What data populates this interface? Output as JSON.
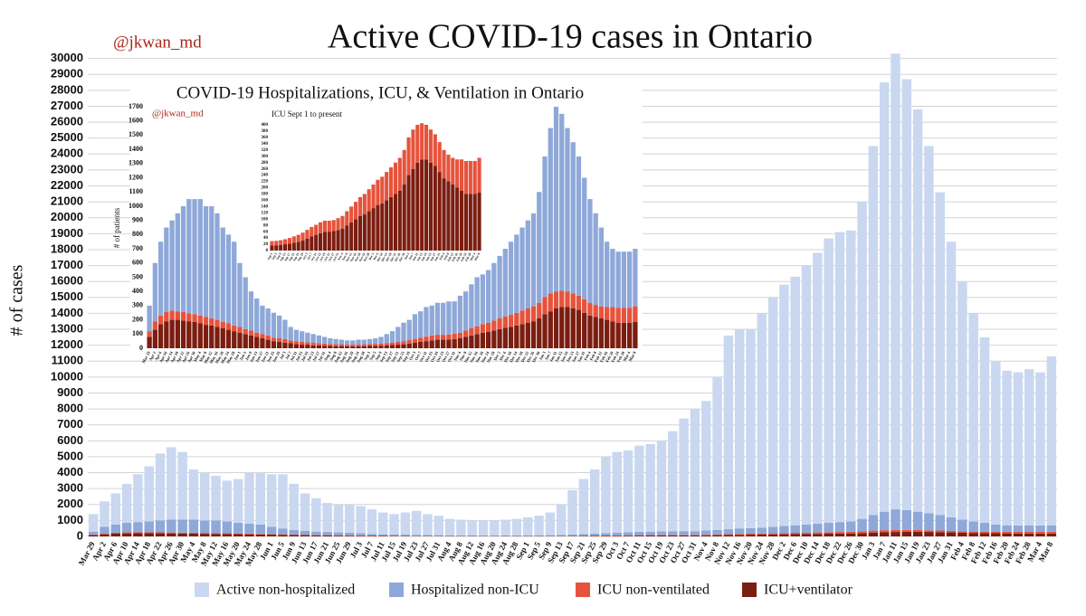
{
  "chart_data": [
    {
      "type": "stacked_bar",
      "title": "Active COVID-19 cases in Ontario",
      "annotation": "@jkwan_md",
      "ylabel": "# of cases",
      "categories": [
        "Mar 29",
        "Apr 2",
        "Apr 6",
        "Apr 10",
        "Apr 14",
        "Apr 18",
        "Apr 22",
        "Apr 26",
        "Apr 30",
        "May 4",
        "May 8",
        "May 12",
        "May 16",
        "May 20",
        "May 24",
        "May 28",
        "Jun 1",
        "Jun 5",
        "Jun 9",
        "Jun 13",
        "Jun 17",
        "Jun 21",
        "Jun 25",
        "Jun 29",
        "Jul 3",
        "Jul 7",
        "Jul 11",
        "Jul 15",
        "Jul 19",
        "Jul 23",
        "Jul 27",
        "Jul 31",
        "Aug 4",
        "Aug 8",
        "Aug 12",
        "Aug 16",
        "Aug 20",
        "Aug 24",
        "Aug 28",
        "Sep 1",
        "Sep 5",
        "Sep 9",
        "Sep 13",
        "Sep 17",
        "Sep 21",
        "Sep 25",
        "Sep 29",
        "Oct 3",
        "Oct 7",
        "Oct 11",
        "Oct 15",
        "Oct 19",
        "Oct 23",
        "Oct 27",
        "Oct 31",
        "Nov 4",
        "Nov 8",
        "Nov 12",
        "Nov 16",
        "Nov 20",
        "Nov 24",
        "Nov 28",
        "Dec 2",
        "Dec 6",
        "Dec 10",
        "Dec 14",
        "Dec 18",
        "Dec 22",
        "Dec 26",
        "Dec 30",
        "Jan 3",
        "Jan 7",
        "Jan 11",
        "Jan 15",
        "Jan 19",
        "Jan 23",
        "Jan 27",
        "Jan 31",
        "Feb 4",
        "Feb 8",
        "Feb 12",
        "Feb 16",
        "Feb 20",
        "Feb 24",
        "Feb 28",
        "Mar 4",
        "Mar 8"
      ],
      "series": [
        {
          "name": "Active non-hospitalized",
          "color": "#c9d8f0",
          "values": [
            1100,
            1600,
            1950,
            2450,
            3000,
            3450,
            4200,
            4550,
            4250,
            3150,
            3000,
            2800,
            2550,
            2750,
            3200,
            3250,
            3300,
            3400,
            2900,
            2350,
            2100,
            1820,
            1750,
            1770,
            1700,
            1550,
            1370,
            1280,
            1390,
            1500,
            1310,
            1220,
            1030,
            985,
            940,
            945,
            945,
            990,
            1040,
            1135,
            1230,
            1420,
            1900,
            2780,
            3450,
            4020,
            4800,
            5060,
            5140,
            5410,
            5500,
            5680,
            6280,
            7070,
            7670,
            8130,
            9600,
            12150,
            12500,
            12480,
            13450,
            14400,
            15150,
            15600,
            16250,
            17000,
            17850,
            18200,
            18250,
            19900,
            23150,
            26950,
            28600,
            27050,
            25250,
            23050,
            20250,
            17300,
            14950,
            13050,
            11650,
            10250,
            9700,
            9620,
            9820,
            9620,
            10600
          ]
        },
        {
          "name": "Hospitalized non-ICU",
          "color": "#8ea8d9",
          "values": [
            180,
            410,
            520,
            595,
            635,
            690,
            745,
            805,
            810,
            820,
            780,
            790,
            750,
            665,
            625,
            590,
            450,
            365,
            275,
            240,
            200,
            190,
            175,
            160,
            135,
            95,
            80,
            75,
            67,
            62,
            54,
            47,
            40,
            37,
            32,
            29,
            29,
            34,
            32,
            35,
            39,
            47,
            64,
            80,
            105,
            130,
            143,
            174,
            185,
            208,
            210,
            225,
            225,
            233,
            227,
            260,
            275,
            310,
            345,
            350,
            370,
            405,
            440,
            475,
            515,
            550,
            585,
            620,
            655,
            780,
            990,
            1165,
            1300,
            1245,
            1150,
            1065,
            980,
            855,
            730,
            645,
            555,
            460,
            410,
            395,
            395,
            395,
            405
          ]
        },
        {
          "name": "ICU non-ventilated",
          "color": "#e6533c",
          "values": [
            40,
            60,
            60,
            65,
            65,
            60,
            60,
            55,
            55,
            55,
            55,
            50,
            50,
            45,
            45,
            40,
            40,
            35,
            35,
            30,
            30,
            30,
            25,
            25,
            25,
            20,
            20,
            20,
            18,
            18,
            16,
            15,
            14,
            13,
            13,
            12,
            12,
            12,
            13,
            14,
            14,
            15,
            16,
            18,
            20,
            22,
            25,
            28,
            30,
            32,
            35,
            35,
            35,
            35,
            38,
            40,
            45,
            50,
            55,
            60,
            65,
            70,
            75,
            80,
            85,
            90,
            95,
            100,
            105,
            110,
            120,
            125,
            120,
            115,
            110,
            105,
            100,
            95,
            90,
            85,
            85,
            90,
            100,
            105,
            105,
            105,
            110
          ]
        },
        {
          "name": "ICU+ventilator",
          "color": "#7b1d10",
          "values": [
            80,
            130,
            170,
            190,
            200,
            200,
            195,
            190,
            185,
            175,
            165,
            160,
            150,
            140,
            130,
            120,
            110,
            100,
            90,
            80,
            70,
            60,
            50,
            45,
            40,
            35,
            30,
            25,
            25,
            20,
            20,
            18,
            16,
            15,
            15,
            14,
            14,
            14,
            15,
            16,
            17,
            18,
            20,
            22,
            25,
            28,
            32,
            38,
            45,
            50,
            55,
            60,
            60,
            62,
            65,
            70,
            80,
            90,
            100,
            110,
            115,
            125,
            135,
            145,
            150,
            160,
            170,
            180,
            190,
            210,
            240,
            260,
            280,
            290,
            290,
            280,
            270,
            250,
            230,
            220,
            210,
            200,
            190,
            180,
            180,
            180,
            185
          ]
        }
      ],
      "ylim": [
        0,
        31000
      ],
      "yticks": [
        0,
        1000,
        2000,
        3000,
        4000,
        5000,
        6000,
        7000,
        8000,
        9000,
        10000,
        11000,
        12000,
        13000,
        14000,
        15000,
        16000,
        17000,
        18000,
        19000,
        20000,
        21000,
        22000,
        23000,
        24000,
        25000,
        26000,
        27000,
        28000,
        29000,
        30000
      ],
      "grid": true,
      "legend": "bottom"
    },
    {
      "type": "stacked_bar",
      "title": "COVID-19 Hospitalizations, ICU, & Ventilation in Ontario",
      "annotation": "@jkwan_md",
      "ylabel": "# of patients",
      "categories": [
        "Mar 29",
        "Apr 2",
        "Apr 6",
        "Apr 10",
        "Apr 14",
        "Apr 18",
        "Apr 22",
        "Apr 26",
        "Apr 30",
        "May 4",
        "May 8",
        "May 12",
        "May 16",
        "May 20",
        "May 24",
        "May 28",
        "Jun 1",
        "Jun 5",
        "Jun 9",
        "Jun 13",
        "Jun 17",
        "Jun 21",
        "Jun 25",
        "Jun 29",
        "Jul 3",
        "Jul 7",
        "Jul 11",
        "Jul 15",
        "Jul 19",
        "Jul 23",
        "Jul 27",
        "Jul 31",
        "Aug 4",
        "Aug 8",
        "Aug 12",
        "Aug 16",
        "Aug 20",
        "Aug 24",
        "Aug 28",
        "Sep 1",
        "Sep 5",
        "Sep 9",
        "Sep 13",
        "Sep 17",
        "Sep 21",
        "Sep 25",
        "Sep 29",
        "Oct 3",
        "Oct 7",
        "Oct 11",
        "Oct 15",
        "Oct 19",
        "Oct 23",
        "Oct 27",
        "Oct 31",
        "Nov 4",
        "Nov 8",
        "Nov 12",
        "Nov 16",
        "Nov 20",
        "Nov 24",
        "Nov 28",
        "Dec 2",
        "Dec 6",
        "Dec 10",
        "Dec 14",
        "Dec 18",
        "Dec 22",
        "Dec 26",
        "Dec 30",
        "Jan 3",
        "Jan 7",
        "Jan 11",
        "Jan 15",
        "Jan 19",
        "Jan 23",
        "Jan 27",
        "Jan 31",
        "Feb 4",
        "Feb 8",
        "Feb 12",
        "Feb 16",
        "Feb 20",
        "Feb 24",
        "Feb 28",
        "Mar 4",
        "Mar 8"
      ],
      "series": [
        {
          "color": "#8ea8d9",
          "values": [
            180,
            410,
            520,
            595,
            635,
            690,
            745,
            805,
            810,
            820,
            780,
            790,
            750,
            665,
            625,
            590,
            450,
            365,
            275,
            240,
            200,
            190,
            175,
            160,
            135,
            95,
            80,
            75,
            67,
            62,
            54,
            47,
            40,
            37,
            32,
            29,
            29,
            34,
            32,
            35,
            39,
            47,
            64,
            80,
            105,
            130,
            143,
            174,
            185,
            208,
            210,
            225,
            225,
            233,
            227,
            260,
            275,
            310,
            345,
            350,
            370,
            405,
            440,
            475,
            515,
            550,
            585,
            620,
            655,
            780,
            990,
            1165,
            1300,
            1245,
            1150,
            1065,
            980,
            855,
            730,
            645,
            555,
            460,
            410,
            395,
            395,
            395,
            405
          ]
        },
        {
          "color": "#e6533c",
          "values": [
            40,
            60,
            60,
            65,
            65,
            60,
            60,
            55,
            55,
            55,
            55,
            50,
            50,
            45,
            45,
            40,
            40,
            35,
            35,
            30,
            30,
            30,
            25,
            25,
            25,
            20,
            20,
            20,
            18,
            18,
            16,
            15,
            14,
            13,
            13,
            12,
            12,
            12,
            13,
            14,
            14,
            15,
            16,
            18,
            20,
            22,
            25,
            28,
            30,
            32,
            35,
            35,
            35,
            35,
            38,
            40,
            45,
            50,
            55,
            60,
            65,
            70,
            75,
            80,
            85,
            90,
            95,
            100,
            105,
            110,
            120,
            125,
            120,
            115,
            110,
            105,
            100,
            95,
            90,
            85,
            85,
            90,
            100,
            105,
            105,
            105,
            110
          ]
        },
        {
          "color": "#7b1d10",
          "values": [
            80,
            130,
            170,
            190,
            200,
            200,
            195,
            190,
            185,
            175,
            165,
            160,
            150,
            140,
            130,
            120,
            110,
            100,
            90,
            80,
            70,
            60,
            50,
            45,
            40,
            35,
            30,
            25,
            25,
            20,
            20,
            18,
            16,
            15,
            15,
            14,
            14,
            14,
            15,
            16,
            17,
            18,
            20,
            22,
            25,
            28,
            32,
            38,
            45,
            50,
            55,
            60,
            60,
            62,
            65,
            70,
            80,
            90,
            100,
            110,
            115,
            125,
            135,
            145,
            150,
            160,
            170,
            180,
            190,
            210,
            240,
            260,
            280,
            290,
            290,
            280,
            270,
            250,
            230,
            220,
            210,
            200,
            190,
            180,
            180,
            180,
            185
          ]
        }
      ],
      "ylim": [
        0,
        1700
      ],
      "yticks": [
        0,
        100,
        200,
        300,
        400,
        500,
        600,
        700,
        800,
        900,
        1000,
        1100,
        1200,
        1300,
        1400,
        1500,
        1600,
        1700
      ],
      "grid": false
    },
    {
      "type": "stacked_bar",
      "title": "ICU Sept 1 to present",
      "categories": [
        "Sep 1",
        "Sep 5",
        "Sep 9",
        "Sep 13",
        "Sep 17",
        "Sep 21",
        "Sep 25",
        "Sep 29",
        "Oct 3",
        "Oct 7",
        "Oct 11",
        "Oct 15",
        "Oct 19",
        "Oct 23",
        "Oct 27",
        "Oct 31",
        "Nov 4",
        "Nov 8",
        "Nov 12",
        "Nov 16",
        "Nov 20",
        "Nov 24",
        "Nov 28",
        "Dec 2",
        "Dec 6",
        "Dec 10",
        "Dec 14",
        "Dec 18",
        "Dec 22",
        "Dec 26",
        "Dec 30",
        "Jan 3",
        "Jan 7",
        "Jan 11",
        "Jan 15",
        "Jan 19",
        "Jan 23",
        "Jan 27",
        "Jan 31",
        "Feb 4",
        "Feb 8",
        "Feb 12",
        "Feb 16",
        "Feb 20",
        "Feb 24",
        "Feb 28",
        "Mar 4",
        "Mar 8"
      ],
      "series": [
        {
          "color": "#e6533c",
          "values": [
            14,
            14,
            15,
            16,
            18,
            20,
            22,
            25,
            28,
            30,
            32,
            35,
            35,
            35,
            35,
            38,
            40,
            45,
            50,
            55,
            60,
            65,
            70,
            75,
            80,
            85,
            90,
            95,
            100,
            105,
            110,
            120,
            125,
            120,
            115,
            110,
            105,
            100,
            95,
            90,
            85,
            85,
            90,
            100,
            105,
            105,
            105,
            110
          ]
        },
        {
          "color": "#7b1d10",
          "values": [
            16,
            17,
            18,
            20,
            22,
            25,
            28,
            32,
            38,
            45,
            50,
            55,
            60,
            60,
            62,
            65,
            70,
            80,
            90,
            100,
            110,
            115,
            125,
            135,
            145,
            150,
            160,
            170,
            180,
            190,
            210,
            240,
            260,
            280,
            290,
            290,
            280,
            270,
            250,
            230,
            220,
            210,
            200,
            190,
            180,
            180,
            180,
            185
          ]
        }
      ],
      "ylim": [
        0,
        400
      ],
      "yticks": [
        0,
        20,
        40,
        60,
        80,
        100,
        120,
        140,
        160,
        180,
        200,
        220,
        240,
        260,
        280,
        300,
        320,
        340,
        360,
        380,
        400
      ],
      "grid": false
    }
  ]
}
